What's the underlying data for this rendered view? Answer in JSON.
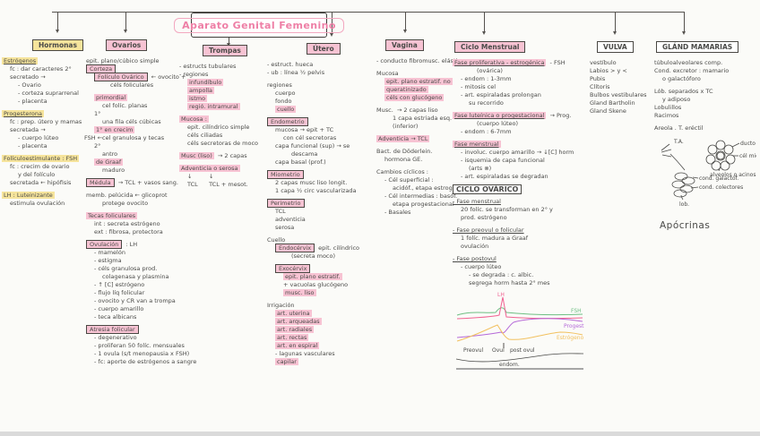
{
  "title": "Aparato Genital Femenino",
  "fsh_label": "FSH ←",
  "columns": [
    {
      "id": "hormonas",
      "heading": "Hormonas",
      "lines": [
        {
          "t": "Estrógenos",
          "hl": "yellow",
          "u": true
        },
        {
          "t": "fc : dar caracteres 2°",
          "ind": 1
        },
        {
          "t": "secretado →",
          "ind": 1
        },
        {
          "t": "- Ovario",
          "ind": 2
        },
        {
          "t": "- corteza suprarrenal",
          "ind": 2
        },
        {
          "t": "- placenta",
          "ind": 2
        },
        {
          "t": "Progesterona",
          "hl": "yellow",
          "u": true,
          "gap": true
        },
        {
          "t": "fc : prep. útero y mamas",
          "ind": 1
        },
        {
          "t": "secretada →",
          "ind": 1
        },
        {
          "t": "- cuerpo lúteo",
          "ind": 2
        },
        {
          "t": "- placenta",
          "ind": 2
        },
        {
          "t": "Folículoestimulante : FSH",
          "hl": "yellow",
          "gap": true
        },
        {
          "t": "fc : crecim de ovario",
          "ind": 1
        },
        {
          "t": "y del folículo",
          "ind": 2
        },
        {
          "t": "secretada ← hipófisis",
          "ind": 1
        },
        {
          "t": "LH : Luteinizante",
          "hl": "yellow",
          "gap": true
        },
        {
          "t": "estimula ovulación",
          "ind": 1
        }
      ]
    },
    {
      "id": "ovarios",
      "heading": "Ovarios",
      "lines": [
        {
          "t": "epit. plano/cúbico simple"
        },
        {
          "t": "Corteza",
          "box": true,
          "hl": "pink"
        },
        {
          "t": "Folículo Ovárico",
          "box": true,
          "hl": "pink",
          "ind": 1,
          "suf": " ← ovocito +"
        },
        {
          "t": "céls foliculares",
          "ind": 3
        },
        {
          "t": "primordial",
          "hl": "pink",
          "ind": 1,
          "gap": true
        },
        {
          "t": "cel folíc. planas",
          "ind": 2
        },
        {
          "t": "1°",
          "ind": 1
        },
        {
          "t": "una fila céls cúbicas",
          "ind": 2
        },
        {
          "t": "1° en crecim",
          "hl": "pink",
          "ind": 1
        },
        {
          "t": "cel granulosa y tecas",
          "ind": 2
        },
        {
          "t": "2°",
          "ind": 1
        },
        {
          "t": "antro",
          "ind": 2
        },
        {
          "t": "de Graaf",
          "hl": "pink",
          "ind": 1
        },
        {
          "t": "maduro",
          "ind": 2
        },
        {
          "t": "Médula",
          "box": true,
          "hl": "pink",
          "suf": " → TCL + vasos sang.",
          "gap": true
        },
        {
          "t": "memb. pelúcida ← glicoprot",
          "gap": true
        },
        {
          "t": "protege ovocito",
          "ind": 2
        },
        {
          "t": "Tecas foliculares",
          "hl": "pink",
          "gap": true
        },
        {
          "t": "int : secreta estrógeno",
          "ind": 1
        },
        {
          "t": "ext : fibrosa, protectora",
          "ind": 1
        },
        {
          "t": "Ovulación",
          "box": true,
          "hl": "pink",
          "suf": " : LH",
          "gap": true
        },
        {
          "t": "- mamelón",
          "ind": 1
        },
        {
          "t": "- estigma",
          "ind": 1
        },
        {
          "t": "- céls granulosa prod.",
          "ind": 1
        },
        {
          "t": "colagenasa y plasmina",
          "ind": 2
        },
        {
          "t": "- ↑ [C] estrógeno",
          "ind": 1
        },
        {
          "t": "- flujo líq folicular",
          "ind": 1
        },
        {
          "t": "- ovocito y CR van a trompa",
          "ind": 1
        },
        {
          "t": "- cuerpo amarillo",
          "ind": 1
        },
        {
          "t": "- teca albicans",
          "ind": 1
        },
        {
          "t": "Atresia folicular",
          "box": true,
          "hl": "pink",
          "gap": true
        },
        {
          "t": "- degenerativo",
          "ind": 1
        },
        {
          "t": "- proliferan 50 folíc. mensuales",
          "ind": 1
        },
        {
          "t": "- 1 ovula (s/t menopausia x FSH)",
          "ind": 1
        },
        {
          "t": "- fc: aporte de estrógenos a sangre",
          "ind": 1
        }
      ]
    },
    {
      "id": "trompas",
      "heading": "Trompas",
      "lines": [
        {
          "t": "- estructs tubulares"
        },
        {
          "t": "- regiones"
        },
        {
          "t": "infundíbulo",
          "hl": "pink",
          "ind": 1
        },
        {
          "t": "ampolla",
          "hl": "pink",
          "ind": 1
        },
        {
          "t": "istmo",
          "hl": "pink",
          "ind": 1
        },
        {
          "t": "regió. intramural",
          "hl": "pink",
          "ind": 1
        },
        {
          "t": "Mucosa :",
          "hl": "pink",
          "gap": true
        },
        {
          "t": "epit. cilíndrico simple",
          "ind": 1
        },
        {
          "t": "céls ciliadas",
          "ind": 1
        },
        {
          "t": "céls secretoras de moco",
          "ind": 1
        },
        {
          "t": "Musc (liso)",
          "hl": "pink",
          "suf": " → 2 capas",
          "gap": true
        },
        {
          "t": "Adventicia o serosa",
          "hl": "pink",
          "gap": true
        },
        {
          "t": "↓",
          "ind": 1,
          "suf": "        ↓"
        },
        {
          "t": "TCL",
          "ind": 1,
          "suf": "     TCL + mesot."
        }
      ]
    },
    {
      "id": "utero",
      "heading": "Útero",
      "lines": [
        {
          "t": "- estruct. hueca"
        },
        {
          "t": "- ub : línea ½ pelvis"
        },
        {
          "t": "regiones",
          "gap": true
        },
        {
          "t": "cuerpo",
          "ind": 1
        },
        {
          "t": "fondo",
          "ind": 1
        },
        {
          "t": "cuello",
          "hl": "pink",
          "ind": 1
        },
        {
          "t": "Endometrio",
          "box": true,
          "hl": "pink",
          "gap": true
        },
        {
          "t": "mucosa → epit + TC",
          "ind": 1
        },
        {
          "t": "con cél secretoras",
          "ind": 2
        },
        {
          "t": "capa funcional (sup) → se",
          "ind": 1
        },
        {
          "t": "descama",
          "ind": 3
        },
        {
          "t": "capa basal (prof.)",
          "ind": 1
        },
        {
          "t": "Miometrio",
          "box": true,
          "hl": "pink",
          "gap": true
        },
        {
          "t": "2 capas musc liso longit.",
          "ind": 1
        },
        {
          "t": "1 capa ½ circ vascularizada",
          "ind": 1
        },
        {
          "t": "Perimetrio",
          "box": true,
          "hl": "pink",
          "gap": true
        },
        {
          "t": "TCL",
          "ind": 1
        },
        {
          "t": "adventicia",
          "ind": 1
        },
        {
          "t": "serosa",
          "ind": 1
        },
        {
          "t": "Cuello",
          "gap": true
        },
        {
          "t": "Endocérvix",
          "box": true,
          "hl": "pink",
          "ind": 1,
          "suf": " epit. cilíndrico"
        },
        {
          "t": "(secreta moco)",
          "ind": 3
        },
        {
          "t": "Exocérvix",
          "box": true,
          "hl": "pink",
          "ind": 1,
          "gap": true
        },
        {
          "t": "epit. plano estratif.",
          "hl": "pink",
          "ind": 2
        },
        {
          "t": "+ vacuolas glucógeno",
          "ind": 2
        },
        {
          "t": "musc. liso",
          "hl": "pink",
          "ind": 2
        },
        {
          "t": "Irrigación",
          "gap": true
        },
        {
          "t": "art. uterina",
          "hl": "pink",
          "ind": 1
        },
        {
          "t": "art. arqueadas",
          "hl": "pink",
          "ind": 1
        },
        {
          "t": "art. radiales",
          "hl": "pink",
          "ind": 1
        },
        {
          "t": "art. rectas",
          "hl": "pink",
          "ind": 1
        },
        {
          "t": "art. en espiral",
          "hl": "pink",
          "ind": 1
        },
        {
          "t": "- lagunas vasculares",
          "ind": 1
        },
        {
          "t": "capilar",
          "hl": "pink",
          "ind": 1
        }
      ]
    },
    {
      "id": "vagina",
      "heading": "Vagina",
      "lines": [
        {
          "t": "- conducto fibromusc. elástico"
        },
        {
          "t": "Mucosa",
          "gap": true
        },
        {
          "t": "epit. plano estratif. no",
          "hl": "pink",
          "ind": 1
        },
        {
          "t": "queratinizado",
          "hl": "pink",
          "ind": 1
        },
        {
          "t": "céls con glucógeno",
          "hl": "pink",
          "ind": 1
        },
        {
          "t": "Musc.",
          "suf": " → 2 capas liso",
          "gap": true
        },
        {
          "t": "1 capa estriada esq.",
          "ind": 2
        },
        {
          "t": "(inferior)",
          "ind": 2
        },
        {
          "t": "Adventicia → TCL",
          "hl": "pink",
          "gap": true
        },
        {
          "t": "Bact. de Döderlein.",
          "gap": true
        },
        {
          "t": "hormona GE.",
          "ind": 1
        },
        {
          "t": "Cambios cíclicos :",
          "gap": true
        },
        {
          "t": "- Cél superficial :",
          "ind": 1
        },
        {
          "t": "acidóf., etapa estrogénica",
          "ind": 2
        },
        {
          "t": "- Cél intermedias : basóf.",
          "ind": 1
        },
        {
          "t": "etapa progestacional",
          "ind": 2
        },
        {
          "t": "- Basales",
          "ind": 1
        }
      ]
    },
    {
      "id": "ciclo",
      "heading": "Ciclo Menstrual",
      "lines": [
        {
          "t": "Fase proliferativa - estrogénica",
          "hl": "pink",
          "u": true,
          "suf": " - FSH"
        },
        {
          "t": "(ovárica)",
          "ind": 3
        },
        {
          "t": "- endom : 1-3mm",
          "ind": 1
        },
        {
          "t": "- mitosis cel",
          "ind": 1
        },
        {
          "t": "- art. espiraladas prolongan",
          "ind": 1
        },
        {
          "t": "su recorrido",
          "ind": 2
        },
        {
          "t": "Fase luteínica o progestacional",
          "hl": "pink",
          "u": true,
          "suf": " → Prog.",
          "gap": true
        },
        {
          "t": "(cuerpo lúteo)",
          "ind": 3
        },
        {
          "t": "- endom : 6-7mm",
          "ind": 1
        },
        {
          "t": "Fase menstrual",
          "hl": "pink",
          "u": true,
          "gap": true
        },
        {
          "t": "- involuc. cuerpo amarillo → ↓[C] horm",
          "ind": 1
        },
        {
          "t": "- isquemia de capa funcional",
          "ind": 1
        },
        {
          "t": "(arts ⊗)",
          "ind": 2
        },
        {
          "t": "- art. espiraladas se degradan",
          "ind": 1
        },
        {
          "t": "CICLO OVÁRICO",
          "box": true,
          "big": true,
          "gap": true
        },
        {
          "t": "- Fase menstrual",
          "u": true,
          "gap": true
        },
        {
          "t": "20 folíc. se transforman en 2° y",
          "ind": 1
        },
        {
          "t": "prod. estrógeno",
          "ind": 1
        },
        {
          "t": "- Fase preovul o folicular",
          "u": true,
          "gap": true
        },
        {
          "t": "1 folíc. madura a Graaf",
          "ind": 1
        },
        {
          "t": "ovulación",
          "ind": 1
        },
        {
          "t": "- Fase postovul",
          "u": true,
          "gap": true
        },
        {
          "t": "- cuerpo lúteo",
          "ind": 1
        },
        {
          "t": "- se degrada : c. albic.",
          "ind": 2
        },
        {
          "t": "segrega horm hasta 2° mes",
          "ind": 2
        }
      ]
    },
    {
      "id": "vulva",
      "heading": "VULVA",
      "lines": [
        {
          "t": "vestíbulo"
        },
        {
          "t": "Labios > y <"
        },
        {
          "t": "Pubis"
        },
        {
          "t": "Clítoris"
        },
        {
          "t": "Bulbos vestibulares"
        },
        {
          "t": "Gland Bartholin"
        },
        {
          "t": "Gland Skene"
        }
      ]
    },
    {
      "id": "gland",
      "heading": "GLÁND MAMARIAS",
      "lines": [
        {
          "t": "túbuloalveolares comp."
        },
        {
          "t": "Cond. excretor : mamario"
        },
        {
          "t": "o galactóforo",
          "ind": 1
        },
        {
          "t": "Lób. separados x TC",
          "gap": true
        },
        {
          "t": "y adiposo",
          "ind": 1
        },
        {
          "t": "Lobulillos"
        },
        {
          "t": "Racimos"
        },
        {
          "t": "Areola . T. eréctil",
          "gap": true
        }
      ]
    }
  ],
  "graph": {
    "curves": [
      {
        "label": "LH",
        "color": "#f06292"
      },
      {
        "label": "FSH",
        "color": "#6fbf84"
      },
      {
        "label": "Progest",
        "color": "#b569d8"
      },
      {
        "label": "Estrógeno",
        "color": "#f2c160"
      }
    ],
    "x_labels": [
      "Preovul",
      "Ovul",
      "post ovul"
    ],
    "baseline_label": "endom."
  },
  "mammary": {
    "labels": [
      "T.A.",
      "ducto",
      "cél mioepit.",
      "alveolos o acinos",
      "cond. galactóf.",
      "cond. colectores",
      "lob."
    ],
    "caption": "Apócrinas"
  }
}
